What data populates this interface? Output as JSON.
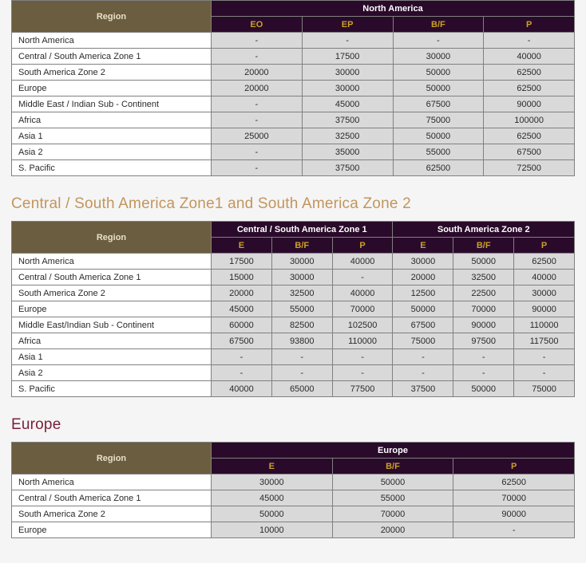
{
  "colors": {
    "title1": "#c2955e",
    "title2": "#7a1f3a"
  },
  "labels": {
    "region": "Region"
  },
  "table1": {
    "topGroup": "North America",
    "cols": [
      "EO",
      "EP",
      "B/F",
      "P"
    ],
    "rows": [
      {
        "label": "North America",
        "cells": [
          "-",
          "-",
          "-",
          "-"
        ]
      },
      {
        "label": "Central / South America Zone 1",
        "cells": [
          "-",
          "17500",
          "30000",
          "40000"
        ]
      },
      {
        "label": "South America Zone 2",
        "cells": [
          "20000",
          "30000",
          "50000",
          "62500"
        ]
      },
      {
        "label": "Europe",
        "cells": [
          "20000",
          "30000",
          "50000",
          "62500"
        ]
      },
      {
        "label": "Middle East / Indian Sub - Continent",
        "cells": [
          "-",
          "45000",
          "67500",
          "90000"
        ]
      },
      {
        "label": "Africa",
        "cells": [
          "-",
          "37500",
          "75000",
          "100000"
        ]
      },
      {
        "label": "Asia 1",
        "cells": [
          "25000",
          "32500",
          "50000",
          "62500"
        ]
      },
      {
        "label": "Asia 2",
        "cells": [
          "-",
          "35000",
          "55000",
          "67500"
        ]
      },
      {
        "label": "S. Pacific",
        "cells": [
          "-",
          "37500",
          "62500",
          "72500"
        ]
      }
    ]
  },
  "table2": {
    "title": "Central / South America Zone1 and South America Zone 2",
    "groups": [
      "Central / South America Zone 1",
      "South America Zone 2"
    ],
    "cols": [
      "E",
      "B/F",
      "P",
      "E",
      "B/F",
      "P"
    ],
    "rows": [
      {
        "label": "North America",
        "cells": [
          "17500",
          "30000",
          "40000",
          "30000",
          "50000",
          "62500"
        ]
      },
      {
        "label": "Central / South America Zone 1",
        "cells": [
          "15000",
          "30000",
          "-",
          "20000",
          "32500",
          "40000"
        ]
      },
      {
        "label": "South America Zone 2",
        "cells": [
          "20000",
          "32500",
          "40000",
          "12500",
          "22500",
          "30000"
        ]
      },
      {
        "label": "Europe",
        "cells": [
          "45000",
          "55000",
          "70000",
          "50000",
          "70000",
          "90000"
        ]
      },
      {
        "label": "Middle East/Indian Sub - Continent",
        "cells": [
          "60000",
          "82500",
          "102500",
          "67500",
          "90000",
          "110000"
        ]
      },
      {
        "label": "Africa",
        "cells": [
          "67500",
          "93800",
          "110000",
          "75000",
          "97500",
          "117500"
        ]
      },
      {
        "label": "Asia 1",
        "cells": [
          "-",
          "-",
          "-",
          "-",
          "-",
          "-"
        ]
      },
      {
        "label": "Asia 2",
        "cells": [
          "-",
          "-",
          "-",
          "-",
          "-",
          "-"
        ]
      },
      {
        "label": "S. Pacific",
        "cells": [
          "40000",
          "65000",
          "77500",
          "37500",
          "50000",
          "75000"
        ]
      }
    ]
  },
  "table3": {
    "title": "Europe",
    "groups": [
      "Europe"
    ],
    "cols": [
      "E",
      "B/F",
      "P"
    ],
    "rows": [
      {
        "label": "North America",
        "cells": [
          "30000",
          "50000",
          "62500"
        ]
      },
      {
        "label": "Central / South America Zone 1",
        "cells": [
          "45000",
          "55000",
          "70000"
        ]
      },
      {
        "label": "South America Zone 2",
        "cells": [
          "50000",
          "70000",
          "90000"
        ]
      },
      {
        "label": "Europe",
        "cells": [
          "10000",
          "20000",
          "-"
        ]
      }
    ]
  }
}
